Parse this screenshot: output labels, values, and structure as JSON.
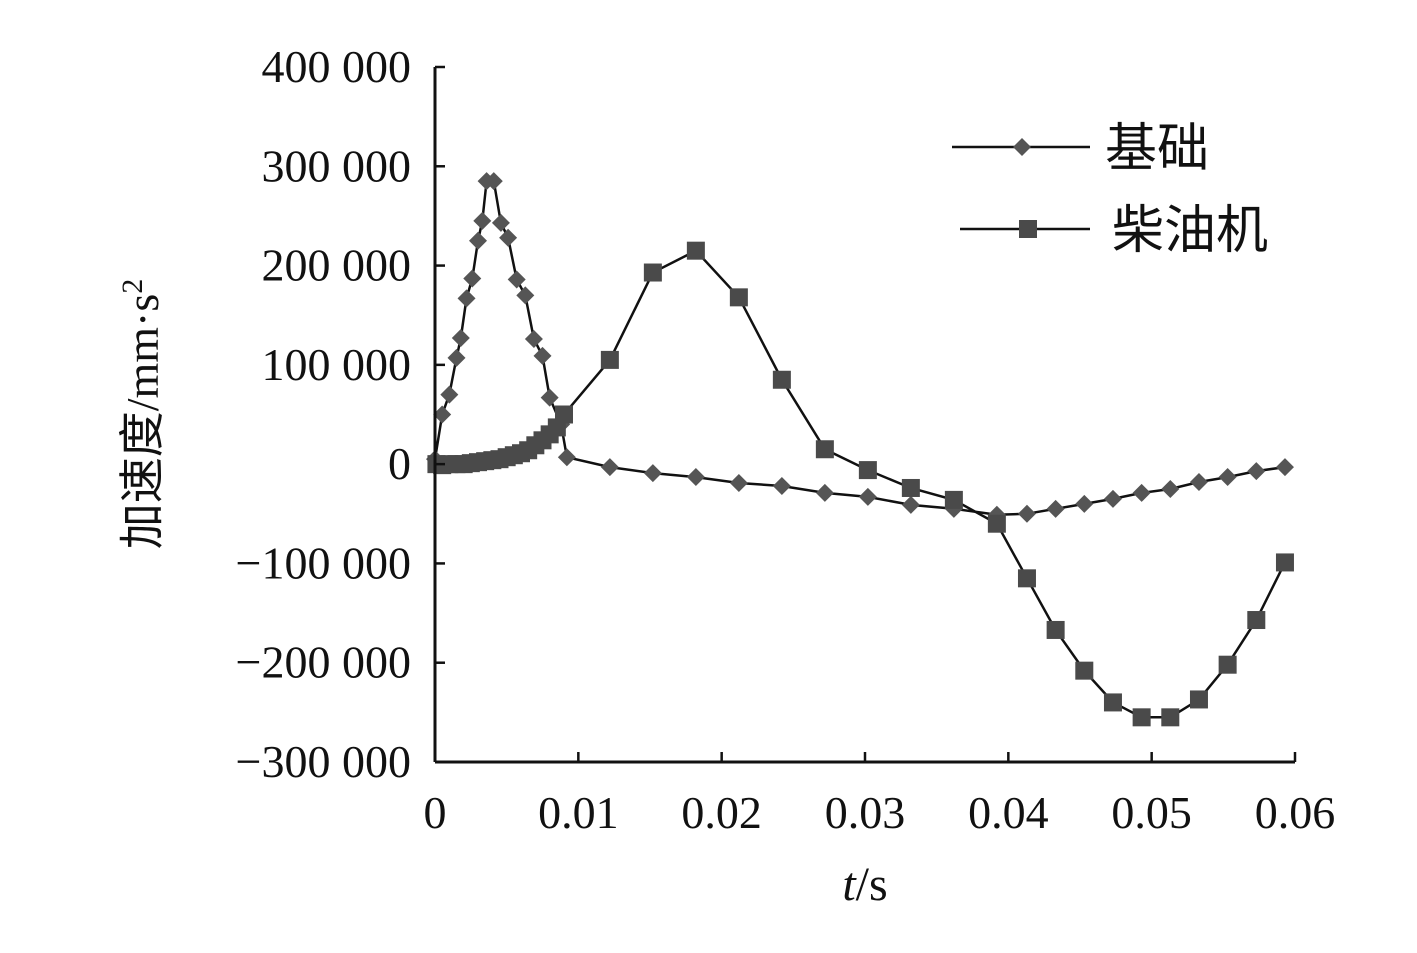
{
  "chart_data": {
    "type": "line",
    "title": "",
    "xlabel_italic": "t",
    "xlabel_rest": "/s",
    "ylabel": "加速度/mm·s",
    "ylabel_sup": "2",
    "xlim": [
      0,
      0.06
    ],
    "ylim": [
      -300000,
      400000
    ],
    "x_ticks": [
      0,
      0.01,
      0.02,
      0.03,
      0.04,
      0.05,
      0.06
    ],
    "x_tick_labels": [
      "0",
      "0.01",
      "0.02",
      "0.03",
      "0.04",
      "0.05",
      "0.06"
    ],
    "y_ticks": [
      400000,
      300000,
      200000,
      100000,
      0,
      -100000,
      -200000,
      -300000
    ],
    "y_tick_labels": [
      "400 000",
      "300 000",
      "200 000",
      "100 000",
      "0",
      "−100 000",
      "−200 000",
      "−300 000"
    ],
    "grid": false,
    "legend_position": "top-right",
    "series": [
      {
        "name": "基础",
        "marker": "diamond",
        "color": "#555555",
        "points": [
          [
            0,
            5000
          ],
          [
            0.0005,
            50000
          ],
          [
            0.001,
            70000
          ],
          [
            0.0015,
            107000
          ],
          [
            0.0018,
            127000
          ],
          [
            0.0022,
            167000
          ],
          [
            0.0026,
            187000
          ],
          [
            0.003,
            225000
          ],
          [
            0.0033,
            245000
          ],
          [
            0.0036,
            285000
          ],
          [
            0.0041,
            285000
          ],
          [
            0.0046,
            243000
          ],
          [
            0.0051,
            228000
          ],
          [
            0.0057,
            186000
          ],
          [
            0.0063,
            170000
          ],
          [
            0.0069,
            126000
          ],
          [
            0.0075,
            109000
          ],
          [
            0.008,
            67000
          ],
          [
            0.0088,
            40000
          ],
          [
            0.0092,
            7000
          ],
          [
            0.0122,
            -3000
          ],
          [
            0.0152,
            -9000
          ],
          [
            0.0182,
            -13000
          ],
          [
            0.0212,
            -19000
          ],
          [
            0.0242,
            -22000
          ],
          [
            0.0272,
            -29000
          ],
          [
            0.0302,
            -33000
          ],
          [
            0.0332,
            -41000
          ],
          [
            0.0362,
            -45000
          ],
          [
            0.0392,
            -51000
          ],
          [
            0.0413,
            -50000
          ],
          [
            0.0433,
            -45000
          ],
          [
            0.0453,
            -40000
          ],
          [
            0.0473,
            -35000
          ],
          [
            0.0493,
            -29000
          ],
          [
            0.0513,
            -25000
          ],
          [
            0.0533,
            -18000
          ],
          [
            0.0553,
            -13000
          ],
          [
            0.0573,
            -7000
          ],
          [
            0.0593,
            -3000
          ]
        ]
      },
      {
        "name": "柴油机",
        "marker": "square",
        "color": "#4a4a4a",
        "points": [
          [
            0.0001,
            0
          ],
          [
            0.0005,
            -1000
          ],
          [
            0.001,
            0
          ],
          [
            0.0015,
            0
          ],
          [
            0.002,
            0
          ],
          [
            0.0025,
            1000
          ],
          [
            0.003,
            2000
          ],
          [
            0.0035,
            3000
          ],
          [
            0.004,
            4000
          ],
          [
            0.0045,
            5000
          ],
          [
            0.005,
            7000
          ],
          [
            0.0055,
            9000
          ],
          [
            0.006,
            11000
          ],
          [
            0.0065,
            14000
          ],
          [
            0.007,
            19000
          ],
          [
            0.0075,
            24000
          ],
          [
            0.008,
            30000
          ],
          [
            0.0085,
            37000
          ],
          [
            0.009,
            50000
          ],
          [
            0.0122,
            105000
          ],
          [
            0.0152,
            193000
          ],
          [
            0.0182,
            215000
          ],
          [
            0.0212,
            168000
          ],
          [
            0.0242,
            85000
          ],
          [
            0.0272,
            15000
          ],
          [
            0.0302,
            -6000
          ],
          [
            0.0332,
            -24000
          ],
          [
            0.0362,
            -36000
          ],
          [
            0.0392,
            -60000
          ],
          [
            0.0413,
            -115000
          ],
          [
            0.0433,
            -167000
          ],
          [
            0.0453,
            -208000
          ],
          [
            0.0473,
            -240000
          ],
          [
            0.0493,
            -255000
          ],
          [
            0.0513,
            -255000
          ],
          [
            0.0533,
            -237000
          ],
          [
            0.0553,
            -202000
          ],
          [
            0.0573,
            -157000
          ],
          [
            0.0593,
            -99000
          ]
        ]
      }
    ]
  }
}
